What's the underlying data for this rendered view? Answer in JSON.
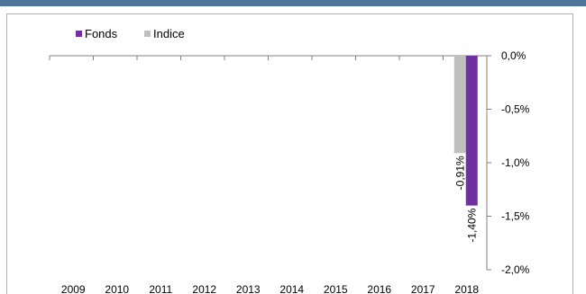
{
  "chart_data": {
    "type": "bar",
    "categories": [
      "2009",
      "2010",
      "2011",
      "2012",
      "2013",
      "2014",
      "2015",
      "2016",
      "2017",
      "2018"
    ],
    "series": [
      {
        "name": "Indice",
        "color": "#bfbfbf",
        "values": [
          null,
          null,
          null,
          null,
          null,
          null,
          null,
          null,
          null,
          -0.91
        ],
        "labels": [
          "",
          "",
          "",
          "",
          "",
          "",
          "",
          "",
          "",
          "-0,91%"
        ]
      },
      {
        "name": "Fonds",
        "color": "#7030a0",
        "values": [
          null,
          null,
          null,
          null,
          null,
          null,
          null,
          null,
          null,
          -1.4
        ],
        "labels": [
          "",
          "",
          "",
          "",
          "",
          "",
          "",
          "",
          "",
          "-1,40%"
        ]
      }
    ],
    "legend": {
      "position": "top-left",
      "entries": [
        "Fonds",
        "Indice"
      ]
    },
    "y_axis": {
      "side": "right",
      "ylim": [
        -2.0,
        0.0
      ],
      "ticks": [
        0.0,
        -0.5,
        -1.0,
        -1.5,
        -2.0
      ],
      "tick_labels": [
        "0,0%",
        "-0,5%",
        "-1,0%",
        "-1,5%",
        "-2,0%"
      ]
    },
    "x_axis": {
      "position": "top",
      "labels_position": "bottom"
    },
    "grid": false,
    "title": "",
    "xlabel": "",
    "ylabel": ""
  }
}
